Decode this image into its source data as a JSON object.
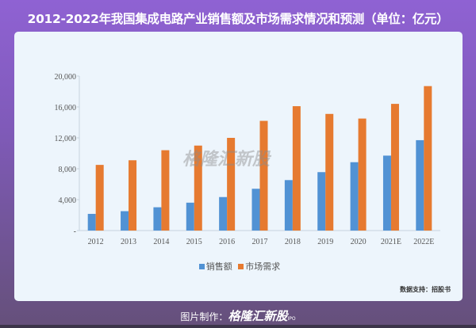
{
  "title": "2012-2022年我国集成电路产业销售额及市场需求情况和预测（单位：亿元）",
  "watermark": "格隆汇新股",
  "source": "数据支持：招股书",
  "footer": {
    "label": "图片制作：",
    "brand": "格隆汇新股",
    "brand_sub": "IPO"
  },
  "colors": {
    "sales": "#5192d4",
    "demand": "#e67a30"
  },
  "chart_data": {
    "type": "bar",
    "title": "2012-2022年我国集成电路产业销售额及市场需求情况和预测（单位：亿元）",
    "categories": [
      "2012",
      "2013",
      "2014",
      "2015",
      "2016",
      "2017",
      "2018",
      "2019",
      "2020",
      "2021E",
      "2022E"
    ],
    "series": [
      {
        "name": "销售额",
        "values": [
          2158,
          2509,
          3015,
          3610,
          4336,
          5411,
          6532,
          7562,
          8848,
          9700,
          11700
        ]
      },
      {
        "name": "市场需求",
        "values": [
          8500,
          9100,
          10400,
          11000,
          12000,
          14200,
          16100,
          15100,
          14500,
          16400,
          18700
        ]
      }
    ],
    "yticks": [
      "-",
      "4,000",
      "8,000",
      "12,000",
      "16,000",
      "20,000"
    ],
    "ylim": [
      0,
      20000
    ],
    "xlabel": "",
    "ylabel": "",
    "legend": "bottom",
    "grid": false
  }
}
